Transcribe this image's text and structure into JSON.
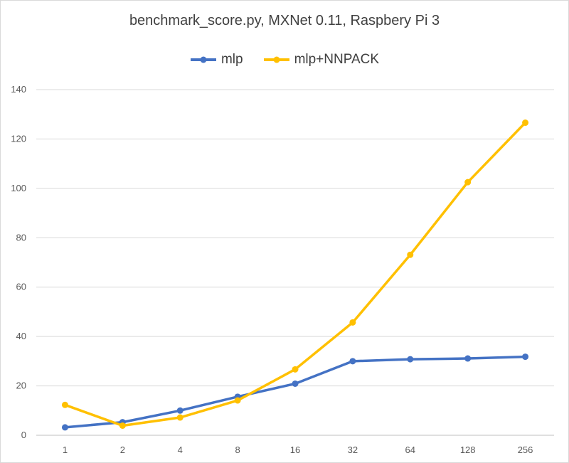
{
  "chart_data": {
    "type": "line",
    "title": "benchmark_score.py,  MXNet 0.11, Raspbery Pi 3",
    "categories": [
      "1",
      "2",
      "4",
      "8",
      "16",
      "32",
      "64",
      "128",
      "256"
    ],
    "series": [
      {
        "name": "mlp",
        "color": "#4472c4",
        "values": [
          3.2,
          5.3,
          10.0,
          15.6,
          20.9,
          30.0,
          30.8,
          31.1,
          31.8
        ]
      },
      {
        "name": "mlp+NNPACK",
        "color": "#ffc000",
        "values": [
          12.3,
          3.9,
          7.2,
          14.1,
          26.7,
          45.7,
          73.1,
          102.5,
          126.6
        ]
      }
    ],
    "y_ticks": [
      "0",
      "20",
      "40",
      "60",
      "80",
      "100",
      "120",
      "140"
    ],
    "ylim": [
      0,
      140
    ],
    "xlabel": "",
    "ylabel": "",
    "grid": true,
    "legend_position": "top"
  }
}
